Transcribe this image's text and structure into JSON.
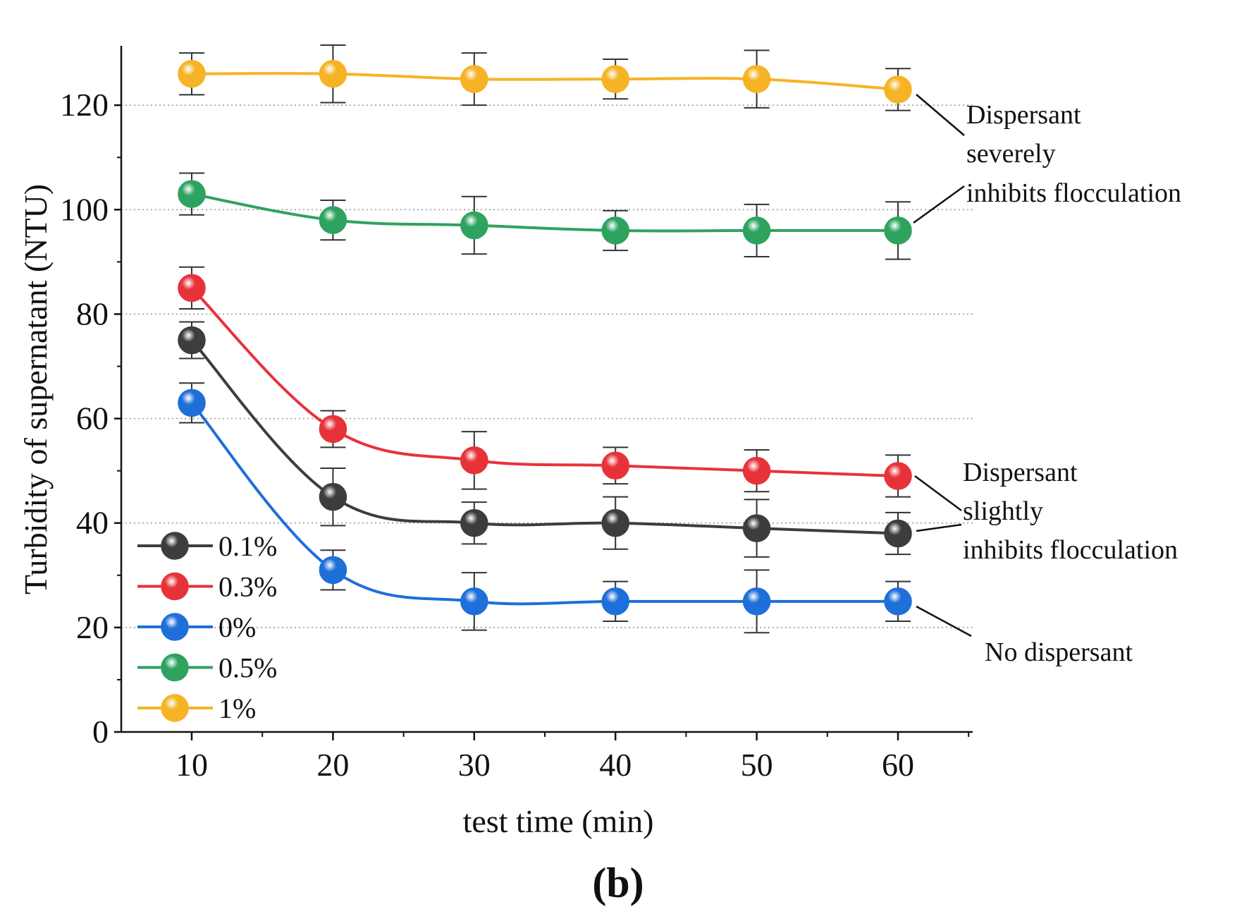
{
  "chart_data": {
    "type": "line",
    "title": "",
    "xlabel": "test time (min)",
    "ylabel": "Turbidity of supernatant (NTU)",
    "caption": "(b)",
    "x": [
      10,
      20,
      30,
      40,
      50,
      60
    ],
    "xticks": [
      10,
      20,
      30,
      40,
      50,
      60
    ],
    "yticks": [
      0,
      20,
      40,
      60,
      80,
      100,
      120
    ],
    "xlim": [
      5,
      65
    ],
    "ylim": [
      0,
      130
    ],
    "grid": "horizontal dotted",
    "legend_position": "bottom-left",
    "series": [
      {
        "name": "0.1%",
        "color": "#3d3d3d",
        "values": [
          75,
          45,
          40,
          40,
          39,
          38
        ],
        "errors": [
          3.5,
          5.5,
          4.0,
          5.0,
          5.5,
          4.0
        ]
      },
      {
        "name": "0.3%",
        "color": "#e8323a",
        "values": [
          85,
          58,
          52,
          51,
          50,
          49
        ],
        "errors": [
          4.0,
          3.5,
          5.5,
          3.5,
          4.0,
          4.0
        ]
      },
      {
        "name": "0%",
        "color": "#1e6fd9",
        "values": [
          63,
          31,
          25,
          25,
          25,
          25
        ],
        "errors": [
          3.8,
          3.8,
          5.5,
          3.8,
          6.0,
          3.8
        ]
      },
      {
        "name": "0.5%",
        "color": "#2ea35f",
        "values": [
          103,
          98,
          97,
          96,
          96,
          96
        ],
        "errors": [
          4.0,
          3.8,
          5.5,
          3.8,
          5.0,
          5.5
        ]
      },
      {
        "name": "1%",
        "color": "#f5b325",
        "values": [
          126,
          126,
          125,
          125,
          125,
          123
        ],
        "errors": [
          4.0,
          5.5,
          5.0,
          3.8,
          5.5,
          4.0
        ]
      }
    ],
    "annotations": [
      {
        "lines": [
          "Dispersant",
          "severely",
          "inhibits flocculation"
        ],
        "points_to": [
          "1%",
          "0.5%"
        ]
      },
      {
        "lines": [
          "Dispersant",
          "slightly",
          "inhibits flocculation"
        ],
        "points_to": [
          "0.3%",
          "0.1%"
        ]
      },
      {
        "lines": [
          "No dispersant"
        ],
        "points_to": [
          "0%"
        ]
      }
    ]
  }
}
